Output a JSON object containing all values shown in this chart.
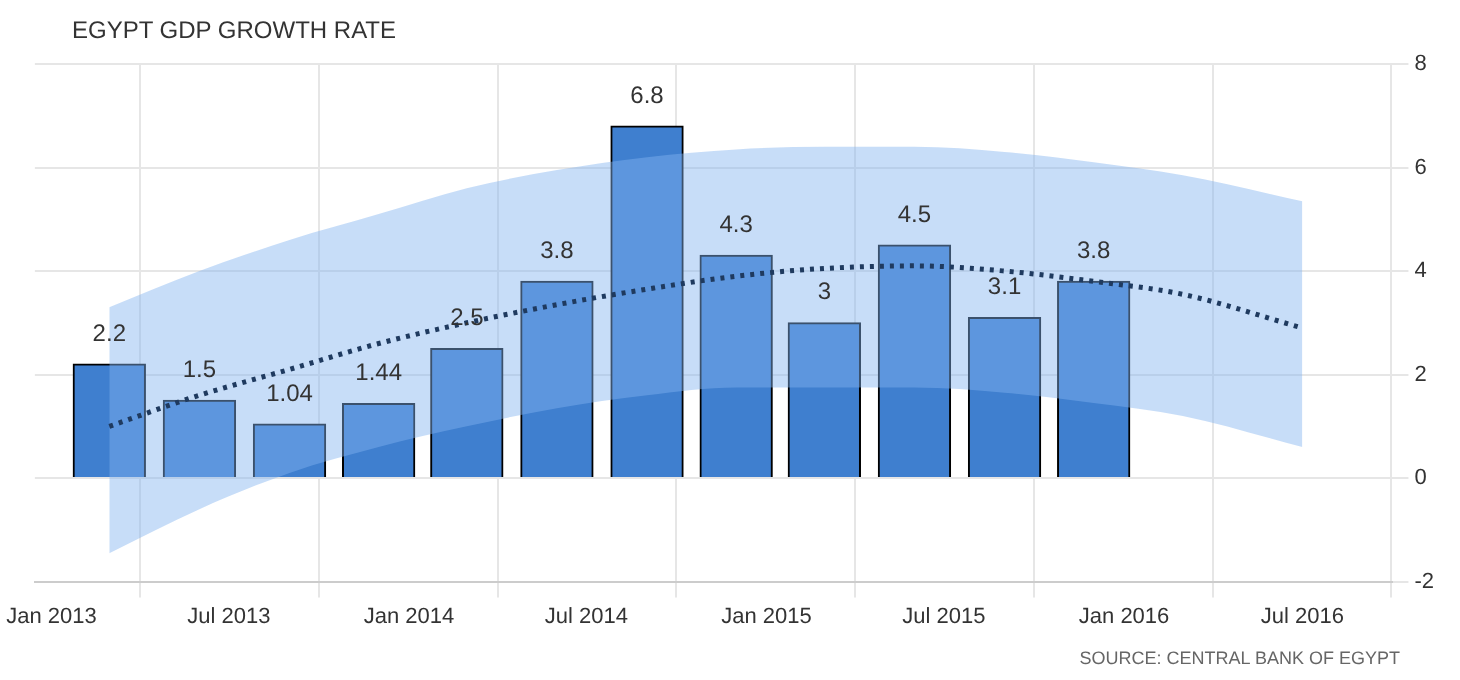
{
  "chart_data": {
    "type": "bar",
    "title": "EGYPT GDP GROWTH RATE",
    "x": [
      "2013-03",
      "2013-06",
      "2013-09",
      "2013-12",
      "2014-03",
      "2014-06",
      "2014-09",
      "2014-12",
      "2015-03",
      "2015-06",
      "2015-09",
      "2015-12"
    ],
    "series": [
      {
        "color": "#3f7fcf",
        "values": [
          2.2,
          1.5,
          1.04,
          1.44,
          2.5,
          3.8,
          6.8,
          4.3,
          3,
          4.5,
          3.1,
          3.8
        ],
        "value_labels": [
          "2.2",
          "1.5",
          "1.04",
          "1.44",
          "2.5",
          "3.8",
          "6.8",
          "4.3",
          "3",
          "4.5",
          "3.1",
          "3.8"
        ]
      },
      {
        "type": "line",
        "color": "#1f3a5f",
        "line_style": "dotted",
        "marker": "none",
        "x": [
          "2013-03",
          "2013-06",
          "2013-09",
          "2013-12",
          "2014-03",
          "2014-06",
          "2014-09",
          "2014-12",
          "2015-03",
          "2015-06",
          "2015-09",
          "2015-12",
          "2016-03",
          "2016-07"
        ],
        "values": [
          1.0,
          1.6,
          2.1,
          2.6,
          3.0,
          3.35,
          3.65,
          3.9,
          4.05,
          4.1,
          4.0,
          3.8,
          3.55,
          2.9
        ],
        "upper": [
          3.3,
          4.0,
          4.6,
          5.1,
          5.6,
          5.95,
          6.2,
          6.35,
          6.4,
          6.4,
          6.3,
          6.1,
          5.85,
          5.35
        ],
        "lower": [
          -1.45,
          -0.6,
          0.1,
          0.6,
          1.0,
          1.35,
          1.6,
          1.75,
          1.75,
          1.75,
          1.65,
          1.45,
          1.2,
          0.6
        ]
      }
    ],
    "xlim": [
      "2012-12-15",
      "2016-10"
    ],
    "xticks": [
      {
        "value": "2013-01",
        "label": "Jan 2013"
      },
      {
        "value": "2013-07",
        "label": "Jul 2013"
      },
      {
        "value": "2014-01",
        "label": "Jan 2014"
      },
      {
        "value": "2014-07",
        "label": "Jul 2014"
      },
      {
        "value": "2015-01",
        "label": "Jan 2015"
      },
      {
        "value": "2015-07",
        "label": "Jul 2015"
      },
      {
        "value": "2016-01",
        "label": "Jan 2016"
      },
      {
        "value": "2016-07",
        "label": "Jul 2016"
      }
    ],
    "ylim": [
      -2,
      8
    ],
    "yticks": [
      -2,
      0,
      2,
      4,
      6,
      8
    ],
    "grid": true,
    "legend": false,
    "annotations": [
      "SOURCE: CENTRAL BANK OF EGYPT"
    ]
  }
}
